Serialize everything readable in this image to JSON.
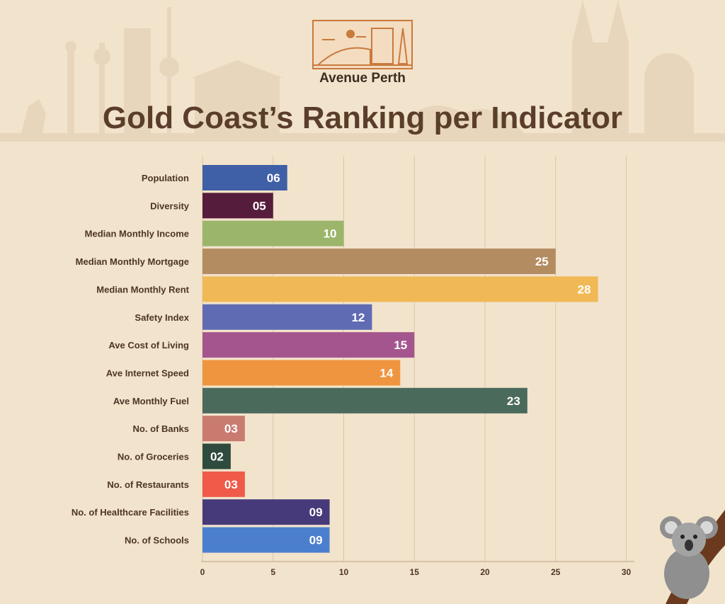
{
  "brand": {
    "name": "Avenue Perth"
  },
  "chart_data": {
    "type": "bar",
    "orientation": "horizontal",
    "title": "Gold Coast’s Ranking per Indicator",
    "categories": [
      "Population",
      "Diversity",
      "Median Monthly Income",
      "Median Monthly Mortgage",
      "Median Monthly Rent",
      "Safety Index",
      "Ave Cost of Living",
      "Ave Internet Speed",
      "Ave Monthly Fuel",
      "No. of Banks",
      "No. of Groceries",
      "No. of Restaurants",
      "No. of Healthcare Facilities",
      "No. of Schools"
    ],
    "values": [
      6,
      5,
      10,
      25,
      28,
      12,
      15,
      14,
      23,
      3,
      2,
      3,
      9,
      9
    ],
    "value_labels": [
      "06",
      "05",
      "10",
      "25",
      "28",
      "12",
      "15",
      "14",
      "23",
      "03",
      "02",
      "03",
      "09",
      "09"
    ],
    "colors": [
      "#3f5fa6",
      "#561c3b",
      "#9bb56b",
      "#b38c61",
      "#f0b955",
      "#5f6bb3",
      "#a5558e",
      "#f0953f",
      "#4a6b5b",
      "#c97b70",
      "#2f4b3d",
      "#ef5a49",
      "#463a7a",
      "#4b7fce"
    ],
    "xlim": [
      0,
      30
    ],
    "xticks": [
      0,
      5,
      10,
      15,
      20,
      25,
      30
    ],
    "xlabel": "",
    "ylabel": "",
    "grid": true
  }
}
